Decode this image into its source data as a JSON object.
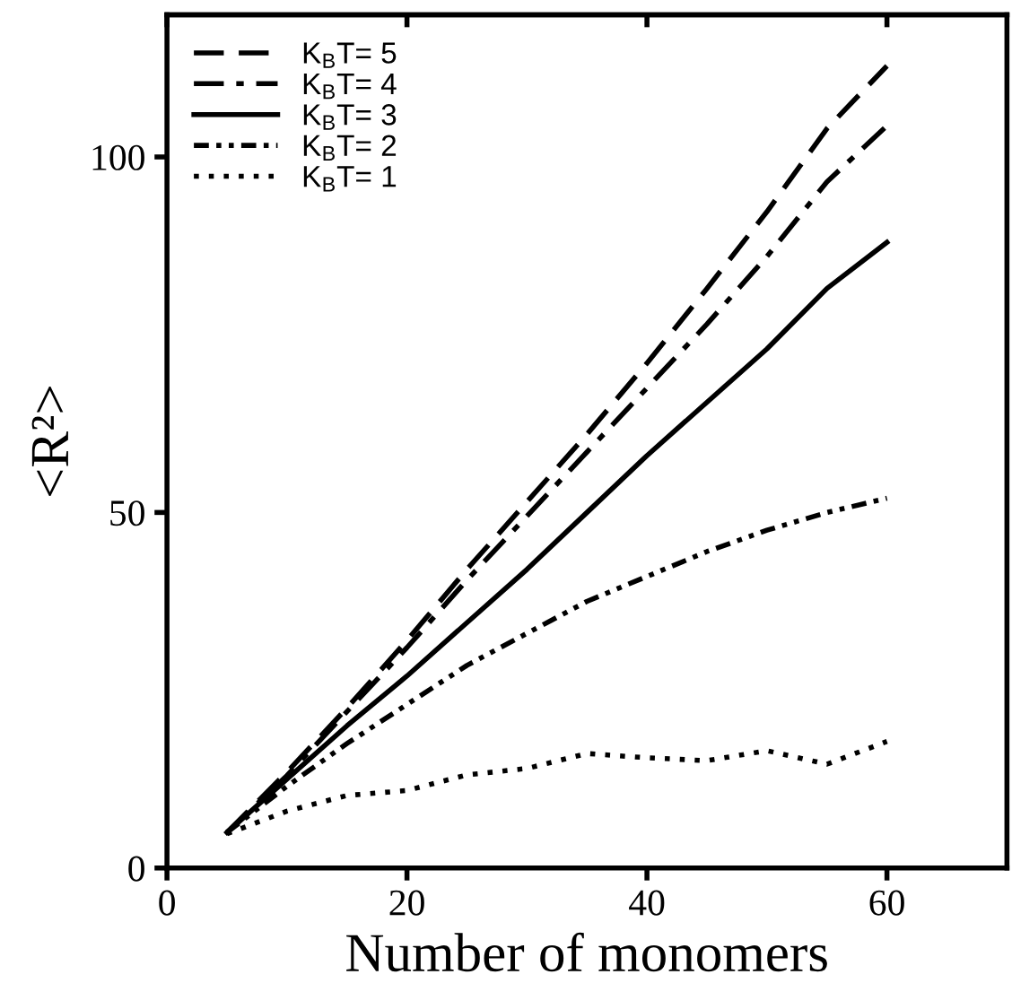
{
  "chart_data": {
    "type": "line",
    "xlabel": "Number of monomers",
    "ylabel": "<R²>",
    "x": [
      5,
      10,
      15,
      20,
      25,
      30,
      35,
      40,
      45,
      50,
      55,
      60
    ],
    "series": [
      {
        "name": "K$_{B}$T= 5",
        "color": "#000000",
        "line_style": "dashed",
        "values": [
          5,
          13.5,
          22.5,
          32,
          42,
          51.5,
          61,
          71,
          81.5,
          92.3,
          104,
          112.8
        ]
      },
      {
        "name": "K$_{B}$T= 4",
        "color": "#000000",
        "line_style": "dashdot",
        "values": [
          5,
          13,
          22,
          31,
          40.5,
          49.5,
          58.5,
          67.5,
          76.5,
          86,
          96.5,
          104.4
        ]
      },
      {
        "name": "K$_{B}$T= 3",
        "color": "#000000",
        "line_style": "solid",
        "values": [
          5,
          12.5,
          20,
          27,
          34.5,
          42,
          50,
          58,
          65.5,
          73,
          81.5,
          88
        ]
      },
      {
        "name": "K$_{B}$T= 2",
        "color": "#000000",
        "line_style": "dashdotdot",
        "values": [
          5,
          11.5,
          17.5,
          23,
          28.5,
          33,
          37.5,
          41,
          44.5,
          47.5,
          50,
          52
        ]
      },
      {
        "name": "K$_{B}$T= 1",
        "color": "#000000",
        "line_style": "dotted",
        "values": [
          4.8,
          8,
          10.2,
          10.9,
          13.1,
          14,
          16.1,
          15.5,
          15.1,
          16.5,
          14.6,
          17.8
        ]
      }
    ],
    "xlim": [
      0,
      70
    ],
    "ylim": [
      0,
      120
    ],
    "xticks": [
      0,
      20,
      40,
      60
    ],
    "yticks": [
      0,
      50,
      100
    ],
    "grid": false,
    "legend": "top left",
    "marker": "none"
  }
}
